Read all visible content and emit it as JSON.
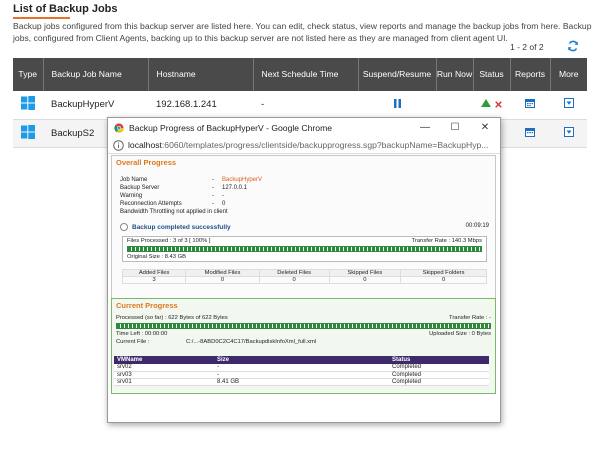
{
  "page": {
    "title": "List of Backup Jobs",
    "description": "Backup jobs configured from this backup server are listed here. You can edit, check status, view reports and manage the backup jobs from here. Backup jobs, configured from Client Agents, backing up to this backup server are not listed here as they are managed from client agent UI.",
    "pager": "1 - 2 of 2"
  },
  "colors": {
    "header_bg": "#4a4a4a",
    "accent": "#e8712a",
    "win_blue": "#1e9be6",
    "status_green": "#2e9b3e",
    "status_red": "#d93030"
  },
  "table": {
    "headers": [
      "Type",
      "Backup Job Name",
      "Hostname",
      "Next Schedule Time",
      "Suspend/Resume",
      "Run Now",
      "Status",
      "Reports",
      "More"
    ],
    "rows": [
      {
        "name": "BackupHyperV",
        "host": "192.168.1.241",
        "schedule": "-"
      },
      {
        "name": "BackupS2",
        "host": "",
        "schedule": ""
      }
    ]
  },
  "popup": {
    "window_title": "Backup Progress of BackupHyperV - Google Chrome",
    "url_host": "localhost",
    "url_rest": ":6060/templates/progress/clientside/backupprogress.sgp?backupName=BackupHyp...",
    "overall_title": "Overall Progress",
    "info": [
      {
        "label": "Job Name",
        "value": "BackupHyperV"
      },
      {
        "label": "Backup Server",
        "value": "127.0.0.1"
      },
      {
        "label": "Warning",
        "value": "-"
      },
      {
        "label": "Reconnection Attempts",
        "value": "0"
      }
    ],
    "throttle": "Bandwidth Throttling not applied in client",
    "elapsed": "00:09:19",
    "completed": "Backup completed successfully",
    "files_processed": "Files Processed : 3 of 3  [ 100% ]",
    "transfer_rate": "Transfer Rate : 140.3 Mbps",
    "original_size": "Original Size : 8.43 GB",
    "stats_headers": [
      "Added Files",
      "Modified Files",
      "Deleted Files",
      "Skipped Files",
      "Skipped Folders"
    ],
    "stats_values": [
      "3",
      "0",
      "0",
      "0",
      "0"
    ],
    "current_title": "Current Progress",
    "processed": "Processed (so far) : 622 Bytes  of  622 Bytes",
    "current_rate": "Transfer Rate :  -",
    "time_left": "Time Left : 00:00:00",
    "uploaded_size": "Uploaded Size : 0 Bytes",
    "current_file_label": "Current File :",
    "current_file": "C:/...-8ABD0C2C4C17/BackupdiskInfoXml_full.xml",
    "vm_headers": [
      "VMName",
      "Size",
      "Status"
    ],
    "vm_rows": [
      {
        "name": "srv02",
        "size": "-",
        "status": "Completed"
      },
      {
        "name": "srv03",
        "size": "-",
        "status": "Completed"
      },
      {
        "name": "srv01",
        "size": "8.41 GB",
        "status": "Completed"
      }
    ]
  }
}
